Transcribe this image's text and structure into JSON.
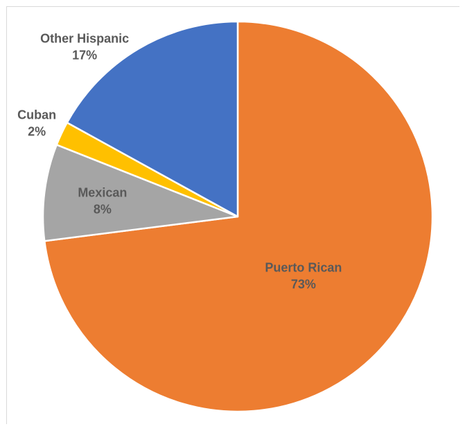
{
  "chart_data": {
    "type": "pie",
    "title": "",
    "slices": [
      {
        "label": "Puerto Rican",
        "value": 73,
        "pct_label": "73%",
        "color": "#ED7D31"
      },
      {
        "label": "Mexican",
        "value": 8,
        "pct_label": "8%",
        "color": "#A5A5A5"
      },
      {
        "label": "Cuban",
        "value": 2,
        "pct_label": "2%",
        "color": "#FFC000"
      },
      {
        "label": "Other Hispanic",
        "value": 17,
        "pct_label": "17%",
        "color": "#4472C4"
      }
    ],
    "start_angle_deg": 0,
    "direction": "clockwise",
    "legend": "none"
  }
}
